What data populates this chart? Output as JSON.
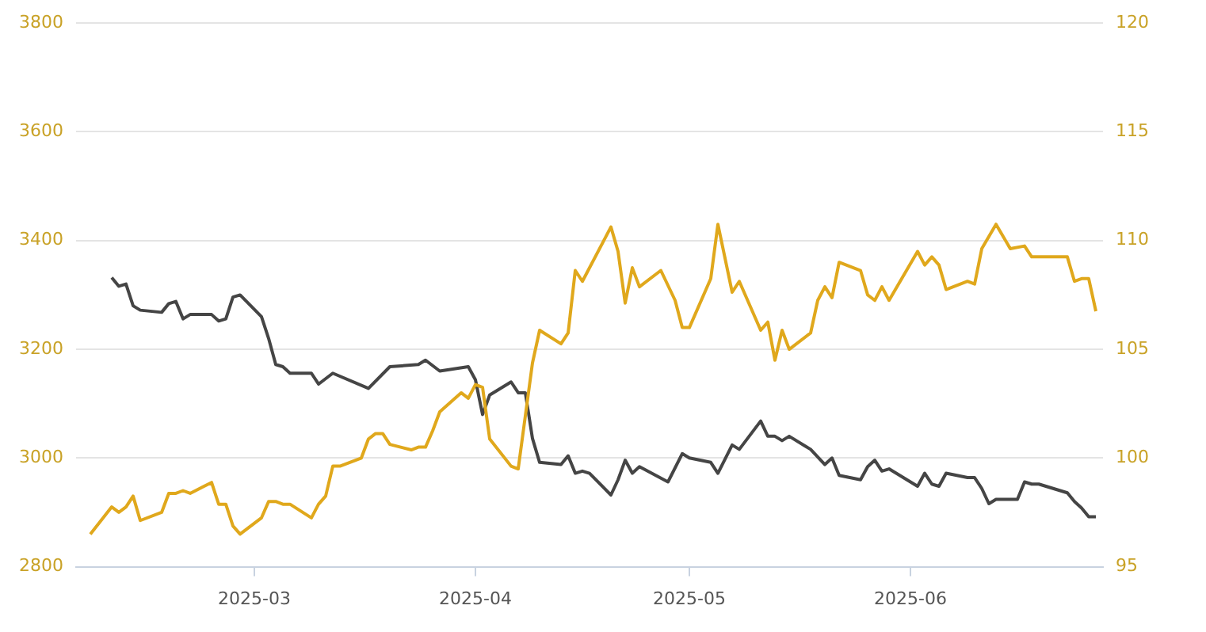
{
  "chart_data": {
    "type": "line",
    "xlim": [
      "2025-02-04",
      "2025-06-28"
    ],
    "xticks": [
      {
        "value": "2025-03-01",
        "label": "2025-03"
      },
      {
        "value": "2025-04-01",
        "label": "2025-04"
      },
      {
        "value": "2025-05-01",
        "label": "2025-05"
      },
      {
        "value": "2025-06-01",
        "label": "2025-06"
      }
    ],
    "ylim": [
      2800,
      3800
    ],
    "yticks": [
      2800,
      3000,
      3200,
      3400,
      3600,
      3800
    ],
    "y2lim": [
      95,
      120
    ],
    "y2ticks": [
      95,
      100,
      105,
      110,
      115,
      120
    ],
    "grid": "y",
    "legend": false,
    "marker": "none",
    "line_style": "solid",
    "series": [
      {
        "color": "#e0a81c",
        "x": [
          "2025-02-06",
          "2025-02-09",
          "2025-02-10",
          "2025-02-11",
          "2025-02-12",
          "2025-02-13",
          "2025-02-16",
          "2025-02-17",
          "2025-02-18",
          "2025-02-19",
          "2025-02-20",
          "2025-02-23",
          "2025-02-24",
          "2025-02-25",
          "2025-02-26",
          "2025-02-27",
          "2025-03-02",
          "2025-03-03",
          "2025-03-04",
          "2025-03-05",
          "2025-03-06",
          "2025-03-09",
          "2025-03-10",
          "2025-03-11",
          "2025-03-12",
          "2025-03-13",
          "2025-03-16",
          "2025-03-17",
          "2025-03-18",
          "2025-03-19",
          "2025-03-20",
          "2025-03-23",
          "2025-03-24",
          "2025-03-25",
          "2025-03-26",
          "2025-03-27",
          "2025-03-30",
          "2025-03-31",
          "2025-04-01",
          "2025-04-02",
          "2025-04-03",
          "2025-04-06",
          "2025-04-07",
          "2025-04-09",
          "2025-04-10",
          "2025-04-13",
          "2025-04-14",
          "2025-04-15",
          "2025-04-16",
          "2025-04-20",
          "2025-04-21",
          "2025-04-22",
          "2025-04-23",
          "2025-04-24",
          "2025-04-27",
          "2025-04-29",
          "2025-04-30",
          "2025-05-01",
          "2025-05-04",
          "2025-05-05",
          "2025-05-07",
          "2025-05-08",
          "2025-05-11",
          "2025-05-12",
          "2025-05-13",
          "2025-05-14",
          "2025-05-15",
          "2025-05-18",
          "2025-05-19",
          "2025-05-20",
          "2025-05-21",
          "2025-05-22",
          "2025-05-25",
          "2025-05-26",
          "2025-05-27",
          "2025-05-28",
          "2025-05-29",
          "2025-06-02",
          "2025-06-03",
          "2025-06-04",
          "2025-06-05",
          "2025-06-06",
          "2025-06-09",
          "2025-06-10",
          "2025-06-11",
          "2025-06-13",
          "2025-06-15",
          "2025-06-17",
          "2025-06-18",
          "2025-06-20",
          "2025-06-23",
          "2025-06-24",
          "2025-06-25",
          "2025-06-26",
          "2025-06-27"
        ],
        "values": [
          2860,
          2910,
          2900,
          2910,
          2930,
          2885,
          2900,
          2935,
          2935,
          2940,
          2935,
          2955,
          2915,
          2915,
          2875,
          2860,
          2890,
          2920,
          2920,
          2915,
          2915,
          2890,
          2915,
          2930,
          2985,
          2985,
          3000,
          3035,
          3045,
          3045,
          3025,
          3015,
          3020,
          3020,
          3050,
          3085,
          3120,
          3110,
          3135,
          3130,
          3035,
          2985,
          2980,
          3175,
          3235,
          3210,
          3230,
          3345,
          3325,
          3425,
          3380,
          3285,
          3350,
          3315,
          3345,
          3290,
          3240,
          3240,
          3330,
          3430,
          3305,
          3325,
          3235,
          3250,
          3180,
          3235,
          3200,
          3230,
          3290,
          3315,
          3295,
          3360,
          3345,
          3300,
          3290,
          3315,
          3290,
          3380,
          3355,
          3370,
          3355,
          3310,
          3325,
          3320,
          3385,
          3430,
          3385,
          3390,
          3370,
          3370,
          3370,
          3325,
          3330,
          3330,
          3270
        ]
      },
      {
        "color": "#454545",
        "axis": "y2",
        "x": [
          "2025-02-09",
          "2025-02-10",
          "2025-02-11",
          "2025-02-12",
          "2025-02-13",
          "2025-02-16",
          "2025-02-17",
          "2025-02-18",
          "2025-02-19",
          "2025-02-20",
          "2025-02-23",
          "2025-02-24",
          "2025-02-25",
          "2025-02-26",
          "2025-02-27",
          "2025-03-02",
          "2025-03-03",
          "2025-03-04",
          "2025-03-05",
          "2025-03-06",
          "2025-03-09",
          "2025-03-10",
          "2025-03-12",
          "2025-03-17",
          "2025-03-20",
          "2025-03-24",
          "2025-03-25",
          "2025-03-27",
          "2025-03-31",
          "2025-04-01",
          "2025-04-02",
          "2025-04-03",
          "2025-04-06",
          "2025-04-07",
          "2025-04-08",
          "2025-04-09",
          "2025-04-10",
          "2025-04-13",
          "2025-04-14",
          "2025-04-15",
          "2025-04-16",
          "2025-04-17",
          "2025-04-20",
          "2025-04-21",
          "2025-04-22",
          "2025-04-23",
          "2025-04-24",
          "2025-04-28",
          "2025-04-30",
          "2025-05-01",
          "2025-05-04",
          "2025-05-05",
          "2025-05-07",
          "2025-05-08",
          "2025-05-11",
          "2025-05-12",
          "2025-05-13",
          "2025-05-14",
          "2025-05-15",
          "2025-05-18",
          "2025-05-20",
          "2025-05-21",
          "2025-05-22",
          "2025-05-25",
          "2025-05-26",
          "2025-05-27",
          "2025-05-28",
          "2025-05-29",
          "2025-06-02",
          "2025-06-03",
          "2025-06-04",
          "2025-06-05",
          "2025-06-06",
          "2025-06-09",
          "2025-06-10",
          "2025-06-11",
          "2025-06-12",
          "2025-06-13",
          "2025-06-16",
          "2025-06-17",
          "2025-06-18",
          "2025-06-19",
          "2025-06-23",
          "2025-06-24",
          "2025-06-25",
          "2025-06-26",
          "2025-06-27"
        ],
        "values": [
          108.3,
          107.9,
          108.0,
          107.0,
          106.8,
          106.7,
          107.1,
          107.2,
          106.4,
          106.6,
          106.6,
          106.3,
          106.4,
          107.4,
          107.5,
          106.5,
          105.5,
          104.3,
          104.2,
          103.9,
          103.9,
          103.4,
          103.9,
          103.2,
          104.2,
          104.3,
          104.5,
          104.0,
          104.2,
          103.6,
          102.0,
          102.9,
          103.5,
          103.0,
          103.0,
          100.9,
          99.8,
          99.7,
          100.1,
          99.3,
          99.4,
          99.3,
          98.3,
          99.0,
          99.9,
          99.3,
          99.6,
          98.9,
          100.2,
          100.0,
          99.8,
          99.3,
          100.6,
          100.4,
          101.7,
          101.0,
          101.0,
          100.8,
          101.0,
          100.4,
          99.7,
          100.0,
          99.2,
          99.0,
          99.6,
          99.9,
          99.4,
          99.5,
          98.7,
          99.3,
          98.8,
          98.7,
          99.3,
          99.1,
          99.1,
          98.6,
          97.9,
          98.1,
          98.1,
          98.9,
          98.8,
          98.8,
          98.4,
          98.0,
          97.7,
          97.3,
          97.3
        ]
      }
    ]
  }
}
